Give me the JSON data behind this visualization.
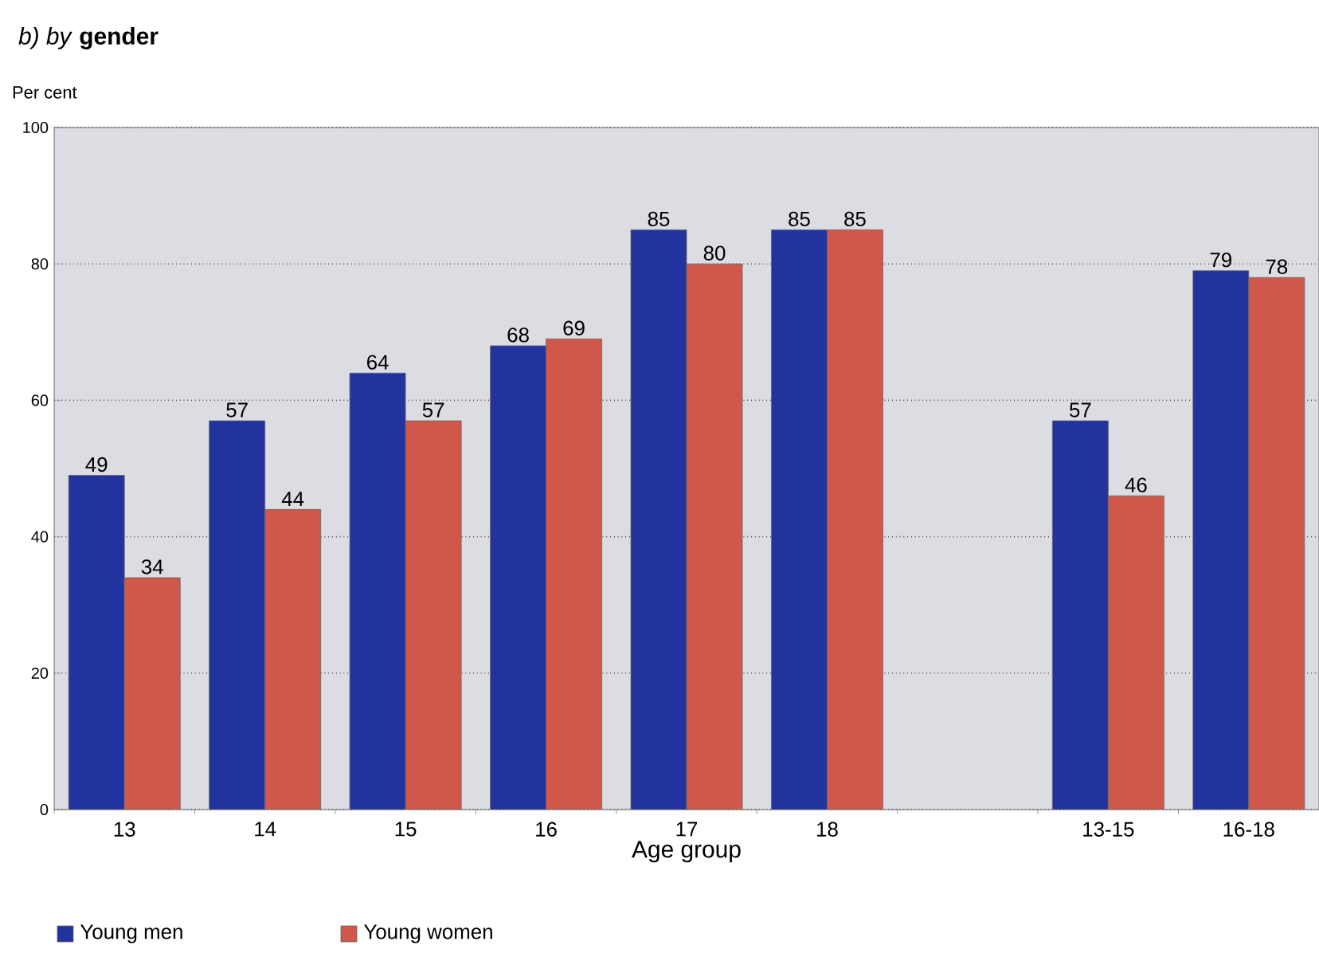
{
  "chart_data": {
    "type": "bar",
    "title": "*b) by* **gender**",
    "ylabel": "Per cent",
    "xlabel": "Age group",
    "categories": [
      "13",
      "14",
      "15",
      "16",
      "17",
      "18",
      null,
      "13-15",
      "16-18"
    ],
    "series": [
      {
        "name": "Young men",
        "color": "#2233a0",
        "values": [
          49,
          57,
          64,
          68,
          85,
          85,
          null,
          57,
          79
        ]
      },
      {
        "name": "Young women",
        "color": "#d0584a",
        "values": [
          34,
          44,
          57,
          69,
          80,
          85,
          null,
          46,
          78
        ]
      }
    ],
    "ylim": [
      0,
      100
    ],
    "yticks": [
      0,
      20,
      40,
      60,
      80,
      100
    ],
    "grid": "y",
    "legend": "bottom left",
    "data_labels": true
  }
}
